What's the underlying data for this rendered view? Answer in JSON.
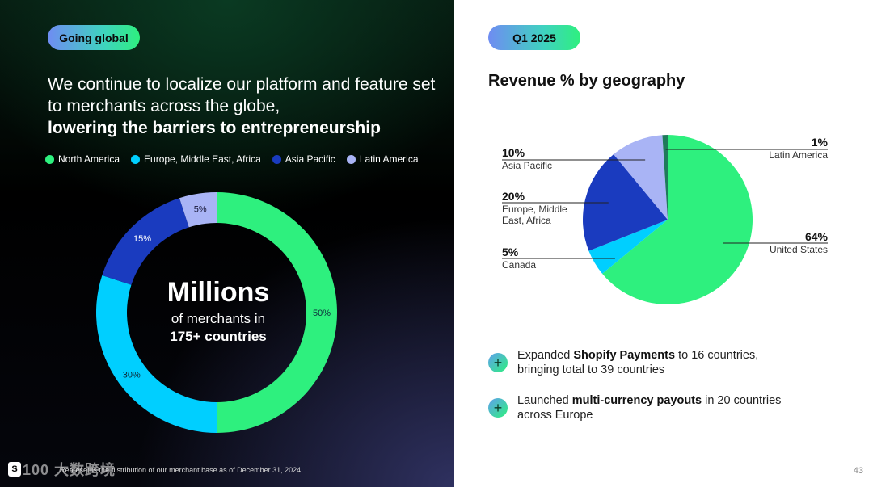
{
  "left": {
    "badge": "Going global",
    "headline_regular": "We continue to localize our platform and feature set to merchants across the globe,",
    "headline_bold": "lowering the barriers to entrepreneurship",
    "center_big": "Millions",
    "center_sub1": "of merchants in",
    "center_sub2": "175+ countries",
    "footnote": "Represents the distribution of our merchant base as of December 31, 2024.",
    "logo_glyph": "S",
    "watermark": "100 大数跨境"
  },
  "right": {
    "badge": "Q1 2025",
    "chart_title": "Revenue % by geography",
    "bullets": [
      {
        "pre": "Expanded ",
        "bold": "Shopify Payments",
        "post": " to 16 countries, bringing total to 39 countries"
      },
      {
        "pre": "Launched ",
        "bold": "multi-currency payouts",
        "post": " in 20 countries across Europe"
      }
    ],
    "page_number": "43"
  },
  "chart_data": [
    {
      "type": "pie",
      "variant": "donut",
      "title": "",
      "legend_position": "top",
      "categories": [
        "North America",
        "Europe, Middle East, Africa",
        "Asia Pacific",
        "Latin America"
      ],
      "values": [
        50,
        30,
        15,
        5
      ],
      "labels": [
        "50%",
        "30%",
        "15%",
        "5%"
      ],
      "colors": [
        "#2ef07e",
        "#00cfff",
        "#1a3bbf",
        "#a9b4f5"
      ]
    },
    {
      "type": "pie",
      "title": "Revenue % by geography",
      "categories": [
        "United States",
        "Canada",
        "Europe, Middle East, Africa",
        "Asia Pacific",
        "Latin America"
      ],
      "display_names": [
        "United States",
        "Canada",
        "Europe, Middle East, Africa",
        "Asia Pacific",
        "Latin America"
      ],
      "values": [
        64,
        5,
        20,
        10,
        1
      ],
      "labels": [
        "64%",
        "5%",
        "20%",
        "10%",
        "1%"
      ],
      "colors": [
        "#2ef07e",
        "#00cfff",
        "#1a3bbf",
        "#a9b4f5",
        "#1f7a5c"
      ]
    }
  ]
}
